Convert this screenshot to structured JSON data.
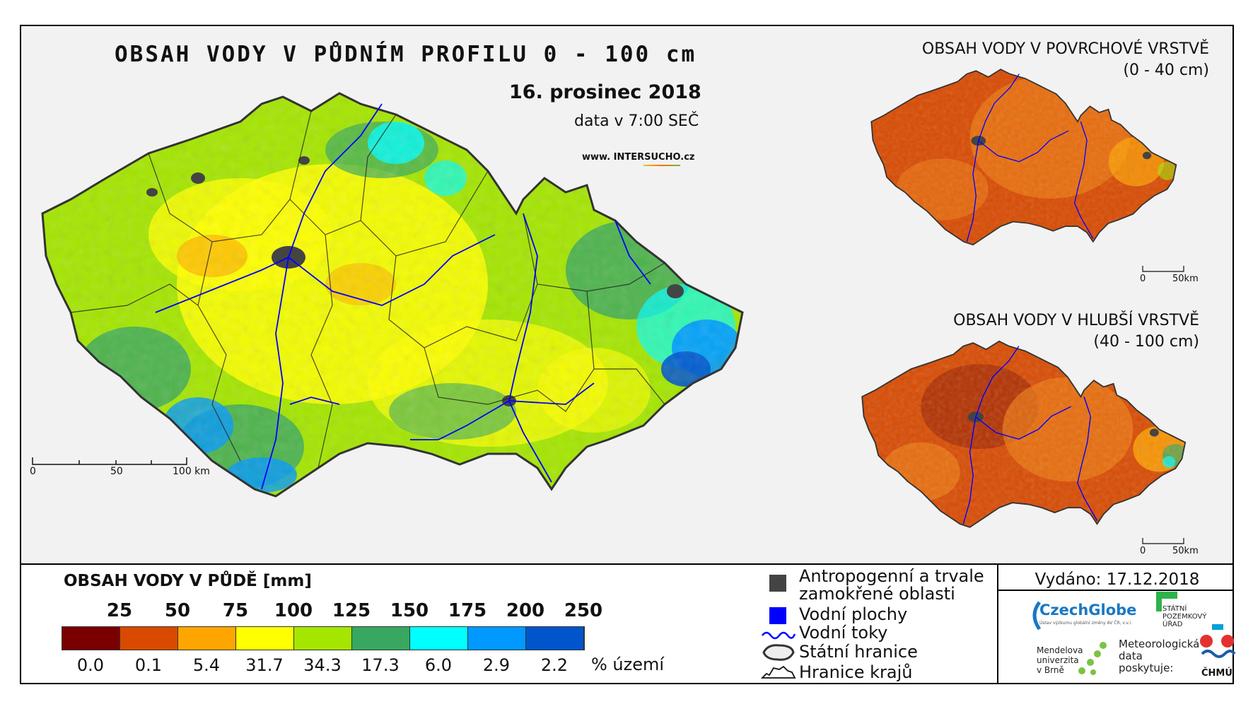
{
  "main_map": {
    "title": "OBSAH VODY V PŮDNÍM PROFILU 0 - 100 cm",
    "date": "16. prosinec 2018",
    "time": "data v 7:00 SEČ",
    "url_prefix": "www. INTER",
    "url_highlight": "SUCHO",
    "url_suffix": ".cz",
    "scale": {
      "t0": "0",
      "t1": "50",
      "t2": "100 km"
    }
  },
  "inset_top": {
    "title_line1": "OBSAH VODY V POVRCHOVÉ VRSTVĚ",
    "title_line2": "(0 - 40 cm)",
    "scale": {
      "t0": "0",
      "t1": "50km"
    }
  },
  "inset_bottom": {
    "title_line1": "OBSAH VODY V HLUBŠÍ VRSTVĚ",
    "title_line2": "(40 - 100 cm)",
    "scale": {
      "t0": "0",
      "t1": "50km"
    }
  },
  "legend": {
    "title": "OBSAH VODY V PŮDĚ [mm]",
    "thresholds": [
      "25",
      "50",
      "75",
      "100",
      "125",
      "150",
      "175",
      "200",
      "250"
    ],
    "colors": [
      "#7a0000",
      "#d94a00",
      "#ffa500",
      "#ffff00",
      "#a5e600",
      "#38a860",
      "#00ffff",
      "#0099ff",
      "#0055cc"
    ],
    "percentages": [
      "0.0",
      "0.1",
      "5.4",
      "31.7",
      "34.3",
      "17.3",
      "6.0",
      "2.9",
      "2.2"
    ],
    "unit": "% území"
  },
  "key": {
    "anthropogenic_line1": "Antropogenní a trvale",
    "anthropogenic_line2": "zamokřené oblasti",
    "water_bodies": "Vodní plochy",
    "rivers": "Vodní toky",
    "state_border": "Státní hranice",
    "region_border": "Hranice krajů",
    "colors": {
      "anthropogenic": "#444444",
      "water": "#0000ff",
      "river": "#0000ff"
    }
  },
  "credits": {
    "issued": "Vydáno: 17.12.2018",
    "czechglobe": "CzechGlobe",
    "czechglobe_sub": "Ústav výzkumu globální změny AV ČR, v.v.i.",
    "spu_line1": "STÁTNÍ",
    "spu_line2": "POZEMKOVÝ",
    "spu_line3": "ÚŘAD",
    "mendel_line1": "Mendelova",
    "mendel_line2": "univerzita",
    "mendel_line3": "v Brně",
    "met_line1": "Meteorologická",
    "met_line2": "data",
    "met_line3": "poskytuje:",
    "chmu": "ČHMÚ"
  }
}
